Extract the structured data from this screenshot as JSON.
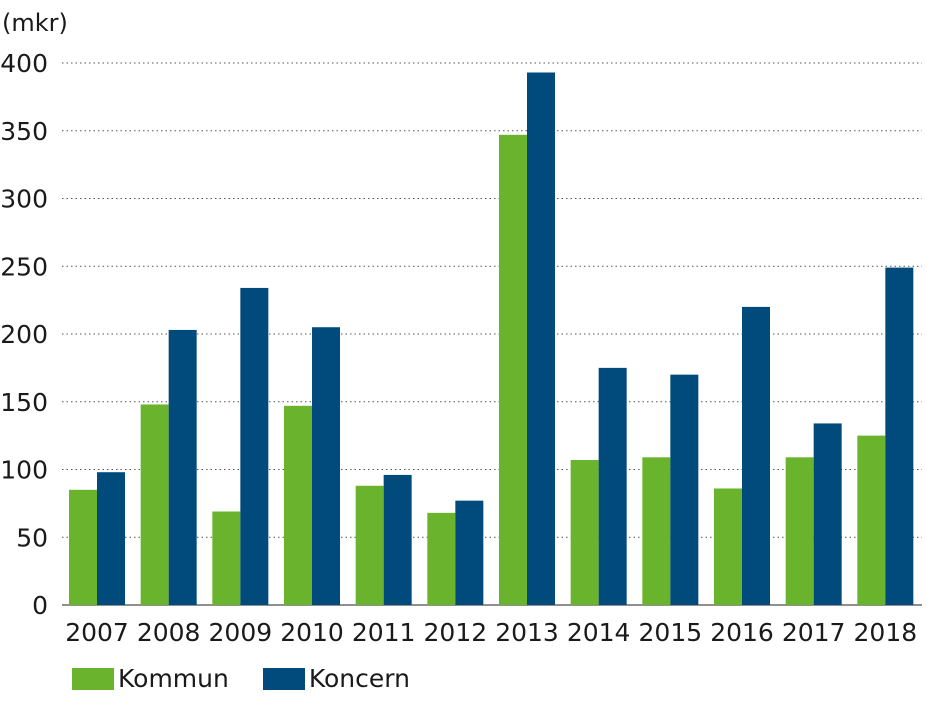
{
  "chart_data": {
    "type": "bar",
    "unit_label": "(mkr)",
    "categories": [
      "2007",
      "2008",
      "2009",
      "2010",
      "2011",
      "2012",
      "2013",
      "2014",
      "2015",
      "2016",
      "2017",
      "2018"
    ],
    "series": [
      {
        "name": "Kommun",
        "color": "#6ab42d",
        "values": [
          85,
          148,
          69,
          147,
          88,
          68,
          347,
          107,
          109,
          86,
          109,
          125
        ]
      },
      {
        "name": "Koncern",
        "color": "#004b7c",
        "values": [
          98,
          203,
          234,
          205,
          96,
          77,
          393,
          175,
          170,
          220,
          134,
          249
        ]
      }
    ],
    "yticks": [
      0,
      50,
      100,
      150,
      200,
      250,
      300,
      350,
      400
    ],
    "ylim": [
      0,
      400
    ],
    "grid": true,
    "gridline_style": "dotted",
    "legend_placement": "bottom-left"
  }
}
